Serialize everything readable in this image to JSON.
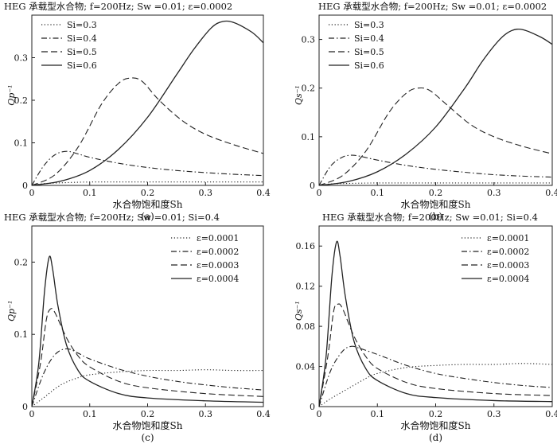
{
  "chart_data": [
    {
      "id": "a",
      "type": "line",
      "title": "HEG 承载型水合物; f=200Hz; Sw =0.01; ε=0.0002",
      "xlabel": "水合物饱和度Sh",
      "ylabel": "Qp⁻¹",
      "caption": "(a)",
      "xlim": [
        0,
        0.4
      ],
      "ylim": [
        0,
        0.4
      ],
      "xticks": [
        "0",
        "0.1",
        "0.2",
        "0.3",
        "0.4"
      ],
      "yticks": [
        "0",
        "0.1",
        "0.2",
        "0.3"
      ],
      "legend_position": "top-left",
      "series": [
        {
          "name": "Si=0.3",
          "style": "dotted",
          "x": [
            0,
            0.02,
            0.05,
            0.1,
            0.15,
            0.2,
            0.25,
            0.3,
            0.35,
            0.4
          ],
          "y": [
            0,
            0.004,
            0.006,
            0.008,
            0.008,
            0.008,
            0.008,
            0.008,
            0.008,
            0.008
          ]
        },
        {
          "name": "Si=0.4",
          "style": "dashdot",
          "x": [
            0,
            0.02,
            0.04,
            0.06,
            0.08,
            0.1,
            0.15,
            0.2,
            0.25,
            0.3,
            0.35,
            0.4
          ],
          "y": [
            0,
            0.045,
            0.072,
            0.08,
            0.074,
            0.066,
            0.052,
            0.042,
            0.035,
            0.03,
            0.026,
            0.023
          ]
        },
        {
          "name": "Si=0.5",
          "style": "dashed",
          "x": [
            0,
            0.04,
            0.08,
            0.12,
            0.15,
            0.17,
            0.19,
            0.22,
            0.26,
            0.3,
            0.35,
            0.4
          ],
          "y": [
            0,
            0.025,
            0.09,
            0.19,
            0.24,
            0.252,
            0.245,
            0.2,
            0.152,
            0.12,
            0.095,
            0.075
          ]
        },
        {
          "name": "Si=0.6",
          "style": "solid",
          "x": [
            0,
            0.05,
            0.1,
            0.15,
            0.2,
            0.25,
            0.28,
            0.31,
            0.33,
            0.35,
            0.38,
            0.4
          ],
          "y": [
            0,
            0.01,
            0.035,
            0.085,
            0.16,
            0.26,
            0.32,
            0.37,
            0.385,
            0.382,
            0.36,
            0.335
          ]
        }
      ]
    },
    {
      "id": "b",
      "type": "line",
      "title": "HEG 承载型水合物; f=200Hz; Sw =0.01; ε=0.0002",
      "xlabel": "水合物饱和度Sh",
      "ylabel": "Qs⁻¹",
      "caption": "(b)",
      "xlim": [
        0,
        0.4
      ],
      "ylim": [
        0,
        0.35
      ],
      "xticks": [
        "0",
        "0.1",
        "0.2",
        "0.3",
        "0.4"
      ],
      "yticks": [
        "0",
        "0.1",
        "0.2",
        "0.3"
      ],
      "legend_position": "top-left",
      "series": [
        {
          "name": "Si=0.3",
          "style": "dotted",
          "x": [
            0,
            0.02,
            0.05,
            0.1,
            0.2,
            0.3,
            0.4
          ],
          "y": [
            0,
            0.003,
            0.004,
            0.005,
            0.005,
            0.005,
            0.005
          ]
        },
        {
          "name": "Si=0.4",
          "style": "dashdot",
          "x": [
            0,
            0.02,
            0.04,
            0.055,
            0.07,
            0.1,
            0.15,
            0.2,
            0.25,
            0.3,
            0.35,
            0.4
          ],
          "y": [
            0,
            0.04,
            0.058,
            0.062,
            0.06,
            0.052,
            0.041,
            0.033,
            0.027,
            0.022,
            0.019,
            0.017
          ]
        },
        {
          "name": "Si=0.5",
          "style": "dashed",
          "x": [
            0,
            0.04,
            0.08,
            0.12,
            0.15,
            0.17,
            0.19,
            0.22,
            0.26,
            0.3,
            0.35,
            0.4
          ],
          "y": [
            0,
            0.02,
            0.07,
            0.15,
            0.19,
            0.2,
            0.195,
            0.165,
            0.125,
            0.1,
            0.08,
            0.065
          ]
        },
        {
          "name": "Si=0.6",
          "style": "solid",
          "x": [
            0,
            0.05,
            0.1,
            0.15,
            0.2,
            0.25,
            0.28,
            0.31,
            0.33,
            0.35,
            0.38,
            0.4
          ],
          "y": [
            0,
            0.008,
            0.028,
            0.065,
            0.12,
            0.2,
            0.255,
            0.3,
            0.318,
            0.32,
            0.305,
            0.29
          ]
        }
      ]
    },
    {
      "id": "c",
      "type": "line",
      "title": "HEG 承载型水合物; f=200Hz; Sw =0.01; Si=0.4",
      "xlabel": "水合物饱和度Sh",
      "ylabel": "Qp⁻¹",
      "caption": "(c)",
      "xlim": [
        0,
        0.4
      ],
      "ylim": [
        0,
        0.25
      ],
      "xticks": [
        "0",
        "0.1",
        "0.2",
        "0.3",
        "0.4"
      ],
      "yticks": [
        "0",
        "0.1",
        "0.2"
      ],
      "legend_position": "top-right",
      "series": [
        {
          "name": "ε=0.0001",
          "style": "dotted",
          "x": [
            0,
            0.02,
            0.05,
            0.08,
            0.1,
            0.15,
            0.2,
            0.25,
            0.3,
            0.35,
            0.4
          ],
          "y": [
            0,
            0.012,
            0.03,
            0.04,
            0.044,
            0.048,
            0.05,
            0.05,
            0.051,
            0.05,
            0.05
          ]
        },
        {
          "name": "ε=0.0002",
          "style": "dashdot",
          "x": [
            0,
            0.02,
            0.04,
            0.06,
            0.08,
            0.1,
            0.15,
            0.2,
            0.25,
            0.3,
            0.35,
            0.4
          ],
          "y": [
            0,
            0.045,
            0.072,
            0.08,
            0.074,
            0.066,
            0.052,
            0.042,
            0.035,
            0.03,
            0.026,
            0.023
          ]
        },
        {
          "name": "ε=0.0003",
          "style": "dashed",
          "x": [
            0,
            0.015,
            0.025,
            0.032,
            0.04,
            0.06,
            0.08,
            0.1,
            0.15,
            0.2,
            0.3,
            0.4
          ],
          "y": [
            0,
            0.06,
            0.12,
            0.135,
            0.13,
            0.095,
            0.07,
            0.055,
            0.035,
            0.026,
            0.018,
            0.014
          ]
        },
        {
          "name": "ε=0.0004",
          "style": "solid",
          "x": [
            0,
            0.012,
            0.022,
            0.03,
            0.036,
            0.045,
            0.06,
            0.08,
            0.1,
            0.15,
            0.2,
            0.3,
            0.4
          ],
          "y": [
            0,
            0.06,
            0.16,
            0.207,
            0.19,
            0.14,
            0.085,
            0.05,
            0.035,
            0.018,
            0.012,
            0.008,
            0.006
          ]
        }
      ]
    },
    {
      "id": "d",
      "type": "line",
      "title": "HEG 承载型水合物; f=200Hz; Sw =0.01; Si=0.4",
      "xlabel": "水合物饱和度Sh",
      "ylabel": "Qs⁻¹",
      "caption": "(d)",
      "xlim": [
        0,
        0.4
      ],
      "ylim": [
        0,
        0.18
      ],
      "xticks": [
        "0",
        "0.1",
        "0.2",
        "0.3",
        "0.4"
      ],
      "yticks": [
        "0",
        "0.04",
        "0.08",
        "0.12",
        "0.16"
      ],
      "legend_position": "top-right",
      "series": [
        {
          "name": "ε=0.0001",
          "style": "dotted",
          "x": [
            0,
            0.02,
            0.05,
            0.08,
            0.1,
            0.15,
            0.2,
            0.25,
            0.3,
            0.35,
            0.4
          ],
          "y": [
            0,
            0.008,
            0.018,
            0.028,
            0.033,
            0.039,
            0.041,
            0.042,
            0.042,
            0.043,
            0.042
          ]
        },
        {
          "name": "ε=0.0002",
          "style": "dashdot",
          "x": [
            0,
            0.02,
            0.04,
            0.055,
            0.07,
            0.1,
            0.15,
            0.2,
            0.25,
            0.3,
            0.35,
            0.4
          ],
          "y": [
            0,
            0.036,
            0.055,
            0.06,
            0.058,
            0.052,
            0.041,
            0.033,
            0.028,
            0.024,
            0.021,
            0.019
          ]
        },
        {
          "name": "ε=0.0003",
          "style": "dashed",
          "x": [
            0,
            0.015,
            0.025,
            0.032,
            0.04,
            0.06,
            0.08,
            0.1,
            0.15,
            0.2,
            0.3,
            0.4
          ],
          "y": [
            0,
            0.05,
            0.095,
            0.102,
            0.098,
            0.07,
            0.05,
            0.038,
            0.024,
            0.018,
            0.013,
            0.011
          ]
        },
        {
          "name": "ε=0.0004",
          "style": "solid",
          "x": [
            0,
            0.012,
            0.022,
            0.03,
            0.036,
            0.045,
            0.06,
            0.08,
            0.1,
            0.15,
            0.2,
            0.3,
            0.4
          ],
          "y": [
            0,
            0.05,
            0.13,
            0.164,
            0.15,
            0.11,
            0.065,
            0.038,
            0.026,
            0.013,
            0.009,
            0.006,
            0.005
          ]
        }
      ]
    }
  ]
}
